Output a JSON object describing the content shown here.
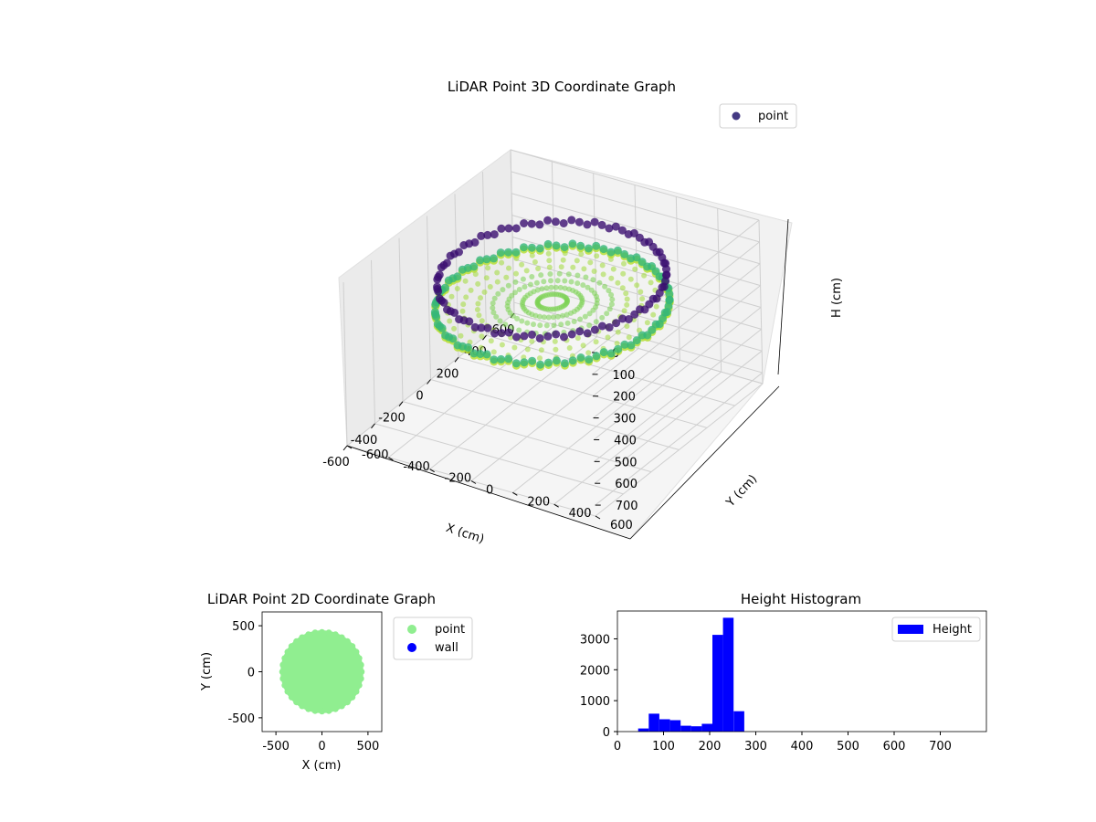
{
  "chart_data": [
    {
      "type": "scatter3d",
      "title": "LiDAR Point 3D Coordinate Graph",
      "xlabel": "X (cm)",
      "ylabel": "Y (cm)",
      "zlabel": "H (cm)",
      "xlim": [
        -600,
        600
      ],
      "ylim": [
        -600,
        600
      ],
      "zlim": [
        0,
        750
      ],
      "z_inverted": true,
      "x_ticks": [
        "-600",
        "-400",
        "-200",
        "0",
        "200",
        "400",
        "600"
      ],
      "y_ticks": [
        "-600",
        "-400",
        "-200",
        "0",
        "200",
        "400",
        "600"
      ],
      "z_ticks": [
        "0",
        "100",
        "200",
        "300",
        "400",
        "500",
        "600",
        "700"
      ],
      "colormap": "viridis",
      "grid": true,
      "legend": {
        "placement": "top-right",
        "entries": [
          {
            "name": "point",
            "color": "#443983"
          }
        ]
      },
      "series": [
        {
          "name": "point",
          "shape": "ring of wall points",
          "rings": [
            {
              "radius": 460,
              "h": 120,
              "color": "#3b0f70"
            },
            {
              "radius": 470,
              "h": 235,
              "color": "#35b779"
            },
            {
              "radius": 470,
              "h": 245,
              "color": "#b5de2b"
            }
          ]
        }
      ]
    },
    {
      "type": "scatter",
      "title": "LiDAR Point 2D Coordinate Graph",
      "xlabel": "X (cm)",
      "ylabel": "Y (cm)",
      "xlim": [
        -650,
        650
      ],
      "ylim": [
        -650,
        650
      ],
      "x_ticks": [
        "-500",
        "0",
        "500"
      ],
      "y_ticks": [
        "-500",
        "0",
        "500"
      ],
      "legend": {
        "placement": "outside-right",
        "entries": [
          {
            "name": "point",
            "color": "#90ee90"
          },
          {
            "name": "wall",
            "color": "#0000ff"
          }
        ]
      },
      "series": [
        {
          "name": "point",
          "color": "#90ee90",
          "shape": "filled disk",
          "radius": 450
        },
        {
          "name": "wall",
          "color": "#0000ff",
          "values": []
        }
      ]
    },
    {
      "type": "bar",
      "title": "Height Histogram",
      "xlim": [
        0,
        800
      ],
      "ylim": [
        0,
        3900
      ],
      "x_ticks": [
        "0",
        "100",
        "200",
        "300",
        "400",
        "500",
        "600",
        "700"
      ],
      "y_ticks": [
        "0",
        "1000",
        "2000",
        "3000"
      ],
      "legend": {
        "placement": "top-right",
        "entries": [
          {
            "name": "Height",
            "color": "#0000ff"
          }
        ]
      },
      "series": [
        {
          "name": "Height",
          "color": "#0000ff",
          "bins": [
            {
              "x0": 45,
              "x1": 68,
              "count": 100
            },
            {
              "x0": 68,
              "x1": 91,
              "count": 580
            },
            {
              "x0": 91,
              "x1": 114,
              "count": 400
            },
            {
              "x0": 114,
              "x1": 137,
              "count": 370
            },
            {
              "x0": 137,
              "x1": 160,
              "count": 190
            },
            {
              "x0": 160,
              "x1": 183,
              "count": 170
            },
            {
              "x0": 183,
              "x1": 206,
              "count": 250
            },
            {
              "x0": 206,
              "x1": 229,
              "count": 3130
            },
            {
              "x0": 229,
              "x1": 252,
              "count": 3680
            },
            {
              "x0": 252,
              "x1": 275,
              "count": 660
            }
          ]
        }
      ]
    }
  ]
}
